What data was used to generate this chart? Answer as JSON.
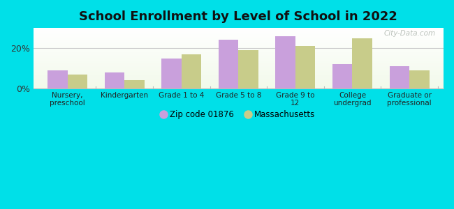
{
  "title": "School Enrollment by Level of School in 2022",
  "categories": [
    "Nursery,\npreschool",
    "Kindergarten",
    "Grade 1 to 4",
    "Grade 5 to 8",
    "Grade 9 to\n12",
    "College\nundergrad",
    "Graduate or\nprofessional"
  ],
  "zip_values": [
    9.0,
    8.0,
    15.0,
    24.0,
    26.0,
    12.0,
    11.0
  ],
  "ma_values": [
    7.0,
    4.0,
    17.0,
    19.0,
    21.0,
    25.0,
    9.0
  ],
  "zip_color": "#c9a0dc",
  "ma_color": "#c8cc8a",
  "zip_label": "Zip code 01876",
  "ma_label": "Massachusetts",
  "bg_outer": "#00e0e8",
  "ylim": [
    0,
    30
  ],
  "yticks": [
    0,
    20
  ],
  "ytick_labels": [
    "0%",
    "20%"
  ],
  "watermark": "City-Data.com",
  "bar_width": 0.35,
  "figsize": [
    6.5,
    3.0
  ],
  "dpi": 100
}
